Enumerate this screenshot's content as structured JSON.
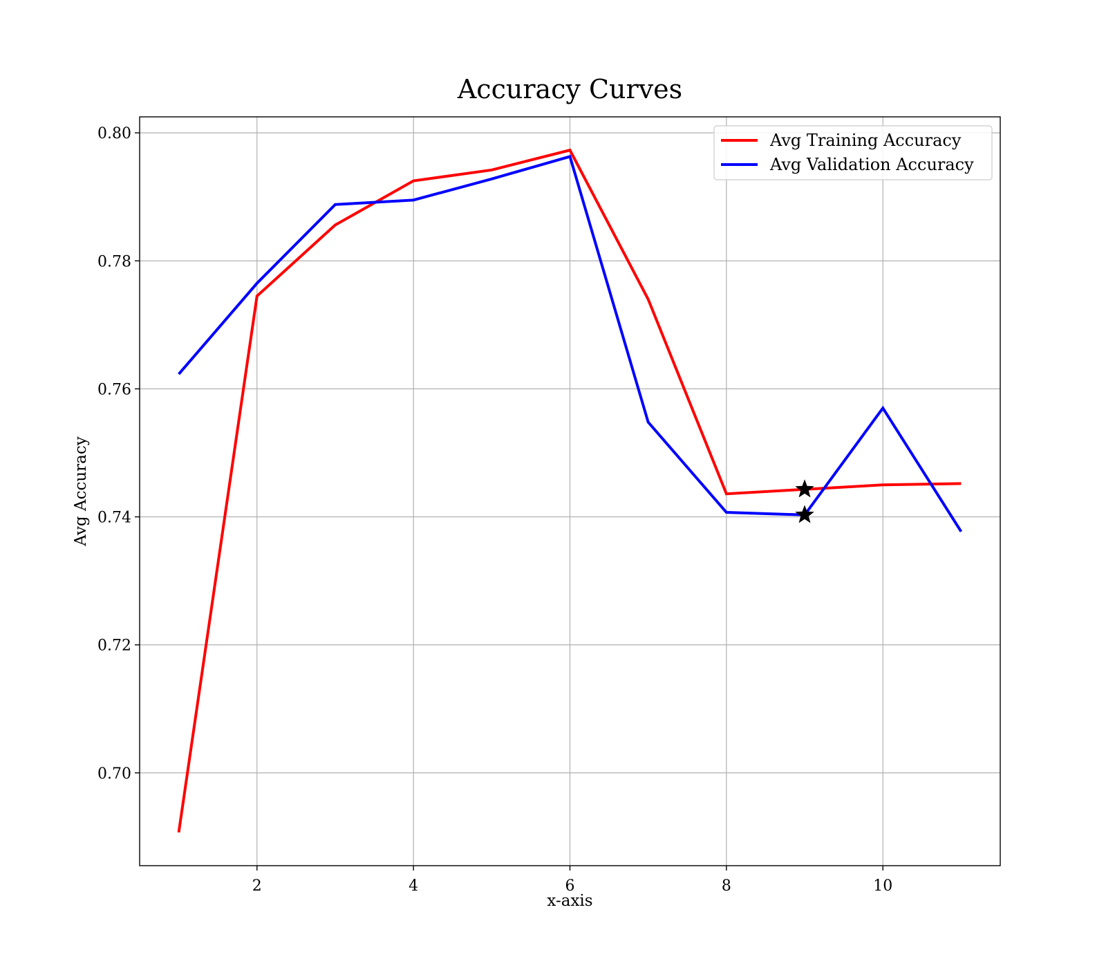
{
  "chart_data": {
    "type": "line",
    "title": "Accuracy Curves",
    "xlabel": "x-axis",
    "ylabel": "Avg Accuracy",
    "xlim": [
      0.5,
      11.5
    ],
    "ylim": [
      0.6855,
      0.8025
    ],
    "x_ticks": [
      2,
      4,
      6,
      8,
      10
    ],
    "y_ticks": [
      0.7,
      0.72,
      0.74,
      0.76,
      0.78,
      0.8
    ],
    "x_tick_labels": [
      "2",
      "4",
      "6",
      "8",
      "10"
    ],
    "y_tick_labels": [
      "0.70",
      "0.72",
      "0.74",
      "0.76",
      "0.78",
      "0.80"
    ],
    "grid": true,
    "legend_position": "top-right",
    "x": [
      1,
      2,
      3,
      4,
      5,
      6,
      7,
      8,
      9,
      10,
      11
    ],
    "series": [
      {
        "name": "Avg Training Accuracy",
        "color": "#ff0000",
        "values": [
          0.6907,
          0.7745,
          0.7856,
          0.7925,
          0.7942,
          0.7973,
          0.774,
          0.7436,
          0.7443,
          0.745,
          0.7452
        ]
      },
      {
        "name": "Avg Validation Accuracy",
        "color": "#0000ff",
        "values": [
          0.7623,
          0.7765,
          0.7888,
          0.7895,
          0.7928,
          0.7963,
          0.7548,
          0.7407,
          0.7403,
          0.757,
          0.7377
        ]
      }
    ],
    "markers": [
      {
        "x": 9,
        "y": 0.7443,
        "symbol": "star",
        "color": "#000000"
      },
      {
        "x": 9,
        "y": 0.7403,
        "symbol": "star",
        "color": "#000000"
      }
    ]
  }
}
